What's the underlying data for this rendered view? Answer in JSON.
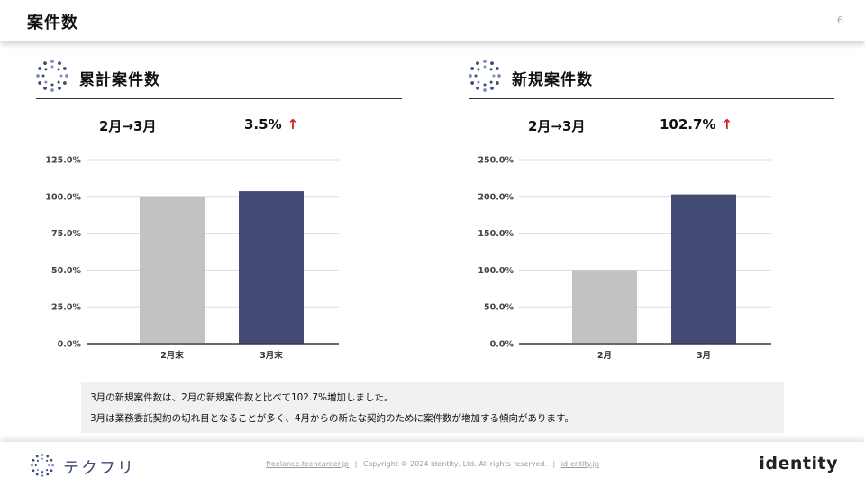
{
  "header": {
    "title": "案件数",
    "page_number": "6"
  },
  "panels": [
    {
      "title": "累計案件数",
      "period": "2月→3月",
      "change": "3.5%",
      "arrow": "↑",
      "chart_data": {
        "type": "bar",
        "categories": [
          "2月末",
          "3月末"
        ],
        "values": [
          100.0,
          103.5
        ],
        "ylim": [
          0,
          125
        ],
        "yticks": [
          "0.0%",
          "25.0%",
          "50.0%",
          "75.0%",
          "100.0%",
          "125.0%"
        ],
        "tick_values": [
          0,
          25,
          50,
          75,
          100,
          125
        ],
        "colors": [
          "#c2c2c2",
          "#444c75"
        ],
        "grid": true
      }
    },
    {
      "title": "新規案件数",
      "period": "2月→3月",
      "change": "102.7%",
      "arrow": "↑",
      "chart_data": {
        "type": "bar",
        "categories": [
          "2月",
          "3月"
        ],
        "values": [
          100.0,
          202.7
        ],
        "ylim": [
          0,
          250
        ],
        "yticks": [
          "0.0%",
          "50.0%",
          "100.0%",
          "150.0%",
          "200.0%",
          "250.0%"
        ],
        "tick_values": [
          0,
          50,
          100,
          150,
          200,
          250
        ],
        "colors": [
          "#c2c2c2",
          "#444c75"
        ],
        "grid": true
      }
    }
  ],
  "note": {
    "line1": "3月の新規案件数は、2月の新規案件数と比べて102.7%増加しました。",
    "line2": "3月は業務委託契約の切れ目となることが多く、4月からの新たな契約のために案件数が増加する傾向があります。"
  },
  "footer": {
    "brand": "テクフリ",
    "link1": "freelance.techcareer.jp",
    "copyright": "Copyright © 2024 identity, Ltd. All rights reserved.",
    "link2": "id-entity.jp",
    "separator": "|",
    "company_logo": "identity"
  },
  "colors": {
    "accent_arrow": "#d3201e",
    "bar_primary": "#444c75",
    "bar_secondary": "#c2c2c2",
    "brand": "#3c4a73"
  },
  "icons": {
    "panel_logo": "dotted-circle-logo-icon",
    "brand_logo": "techfuri-logo-icon"
  }
}
